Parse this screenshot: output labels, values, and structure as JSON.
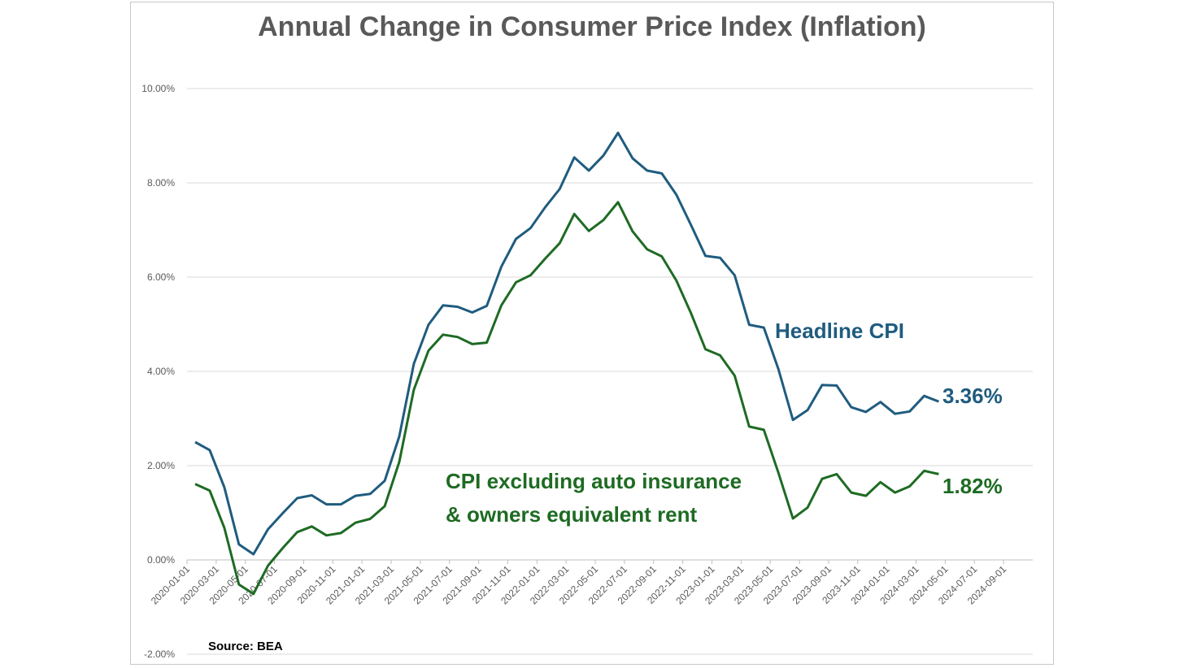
{
  "chart_data": {
    "type": "line",
    "title": "Annual Change in Consumer Price Index (Inflation)",
    "xlabel": "",
    "ylabel": "",
    "ylim": [
      -0.02,
      0.1
    ],
    "y_ticks": [
      "-2.00%",
      "0.00%",
      "2.00%",
      "4.00%",
      "6.00%",
      "8.00%",
      "10.00%"
    ],
    "y_tick_values": [
      -0.02,
      0,
      0.02,
      0.04,
      0.06,
      0.08,
      0.1
    ],
    "x_tick_labels": [
      "2020-01-01",
      "2020-03-01",
      "2020-05-01",
      "2020-07-01",
      "2020-09-01",
      "2020-11-01",
      "2021-01-01",
      "2021-03-01",
      "2021-05-01",
      "2021-07-01",
      "2021-09-01",
      "2021-11-01",
      "2022-01-01",
      "2022-03-01",
      "2022-05-01",
      "2022-07-01",
      "2022-09-01",
      "2022-11-01",
      "2023-01-01",
      "2023-03-01",
      "2023-05-01",
      "2023-07-01",
      "2023-09-01",
      "2023-11-01",
      "2024-01-01",
      "2024-03-01",
      "2024-05-01",
      "2024-07-01",
      "2024-09-01"
    ],
    "grid": true,
    "legend": "none",
    "series": [
      {
        "name": "Headline CPI",
        "color": "#1f5c7f",
        "start": "2020-01",
        "values": [
          0.025,
          0.0233,
          0.0154,
          0.0033,
          0.0012,
          0.0065,
          0.0099,
          0.0131,
          0.0137,
          0.0118,
          0.0118,
          0.0136,
          0.014,
          0.0168,
          0.0262,
          0.0416,
          0.0499,
          0.054,
          0.0537,
          0.0525,
          0.0539,
          0.0622,
          0.0681,
          0.0704,
          0.0748,
          0.0787,
          0.0854,
          0.0826,
          0.0858,
          0.0906,
          0.0852,
          0.0826,
          0.082,
          0.0775,
          0.0711,
          0.0645,
          0.0641,
          0.0604,
          0.0499,
          0.0493,
          0.0405,
          0.0297,
          0.0318,
          0.0371,
          0.037,
          0.0324,
          0.0314,
          0.0335,
          0.031,
          0.0315,
          0.0348,
          0.0336
        ]
      },
      {
        "name": "CPI excluding auto insurance & owners equivalent rent",
        "color": "#1e6b23",
        "start": "2020-01",
        "values": [
          0.0161,
          0.0147,
          0.0068,
          -0.0052,
          -0.0072,
          -0.0012,
          0.0025,
          0.0059,
          0.0071,
          0.0052,
          0.0057,
          0.0079,
          0.0087,
          0.0114,
          0.0208,
          0.0361,
          0.0444,
          0.0478,
          0.0473,
          0.0458,
          0.0461,
          0.054,
          0.0589,
          0.0604,
          0.0639,
          0.0672,
          0.0734,
          0.0698,
          0.0721,
          0.0759,
          0.0697,
          0.0659,
          0.0644,
          0.0593,
          0.0524,
          0.0447,
          0.0434,
          0.0391,
          0.0283,
          0.0276,
          0.0185,
          0.0088,
          0.0111,
          0.0172,
          0.0182,
          0.0143,
          0.0136,
          0.0165,
          0.0143,
          0.0156,
          0.0189,
          0.0182
        ]
      }
    ]
  },
  "annotations": {
    "headline_label": "Headline CPI",
    "headline_value": "3.36%",
    "core_label_line1": "CPI excluding auto insurance",
    "core_label_line2": "& owners equivalent rent",
    "core_value": "1.82%",
    "source": "Source:  BEA"
  }
}
